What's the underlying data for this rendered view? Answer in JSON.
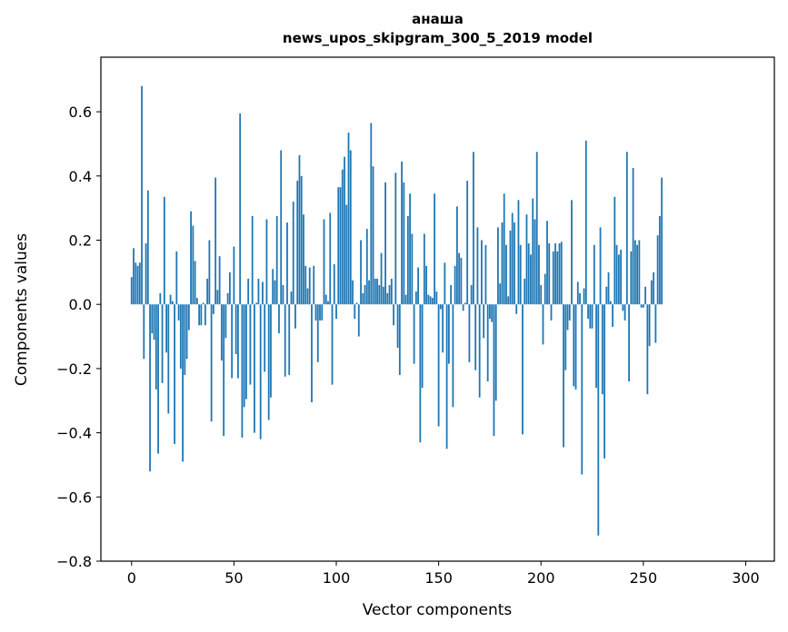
{
  "chart_data": {
    "type": "bar",
    "title_line1": "анаша",
    "title_line2": "news_upos_skipgram_300_5_2019 model",
    "xlabel": "Vector components",
    "ylabel": "Components values",
    "xlim": [
      -15,
      314
    ],
    "ylim": [
      -0.8,
      0.77
    ],
    "x_ticks": [
      0,
      50,
      100,
      150,
      200,
      250,
      300
    ],
    "x_tick_labels": [
      "0",
      "50",
      "100",
      "150",
      "200",
      "250",
      "300"
    ],
    "y_ticks": [
      -0.8,
      -0.6,
      -0.4,
      -0.2,
      0.0,
      0.2,
      0.4,
      0.6
    ],
    "y_tick_labels": [
      "−0.8",
      "−0.6",
      "−0.4",
      "−0.2",
      "0.0",
      "0.2",
      "0.4",
      "0.6"
    ],
    "bar_color": "#1f77b4",
    "grid": false,
    "values": [
      0.085,
      0.175,
      0.13,
      0.12,
      0.13,
      0.68,
      -0.17,
      0.19,
      0.355,
      -0.52,
      -0.09,
      -0.11,
      -0.265,
      -0.465,
      0.035,
      -0.245,
      0.335,
      -0.15,
      -0.34,
      0.03,
      0.01,
      -0.435,
      0.165,
      -0.05,
      -0.2,
      -0.49,
      -0.22,
      -0.17,
      -0.08,
      0.29,
      0.245,
      0.135,
      0.02,
      -0.065,
      -0.065,
      0.005,
      -0.065,
      0.08,
      0.2,
      -0.365,
      -0.03,
      0.395,
      0.045,
      0.15,
      -0.175,
      -0.41,
      -0.105,
      0.035,
      0.1,
      -0.23,
      0.18,
      -0.155,
      -0.23,
      0.595,
      -0.415,
      -0.32,
      -0.295,
      0.08,
      -0.25,
      0.275,
      -0.4,
      0.005,
      0.08,
      -0.42,
      0.07,
      -0.21,
      0.265,
      -0.36,
      -0.29,
      0.11,
      0.075,
      0.275,
      -0.09,
      0.48,
      0.06,
      -0.225,
      0.255,
      -0.22,
      0.04,
      0.32,
      -0.075,
      0.385,
      0.465,
      0.4,
      0.28,
      0.12,
      0.05,
      0.115,
      -0.305,
      0.12,
      -0.05,
      -0.18,
      -0.05,
      -0.05,
      0.265,
      0.03,
      0.01,
      0.285,
      -0.25,
      0.125,
      -0.045,
      0.365,
      0.365,
      0.42,
      0.46,
      0.31,
      0.535,
      0.48,
      0.075,
      -0.045,
      0.005,
      -0.1,
      0.2,
      0.035,
      0.06,
      0.235,
      0.075,
      0.565,
      0.43,
      0.08,
      0.08,
      0.06,
      0.16,
      0.055,
      0.38,
      0.035,
      0.06,
      0.08,
      -0.065,
      0.41,
      -0.135,
      -0.22,
      0.445,
      0.38,
      0.03,
      0.275,
      0.345,
      0.22,
      -0.185,
      0.04,
      0.115,
      -0.43,
      -0.26,
      0.22,
      0.12,
      0.03,
      0.025,
      0.02,
      0.345,
      0.04,
      -0.38,
      -0.015,
      -0.15,
      0.13,
      -0.45,
      -0.185,
      0.06,
      -0.32,
      0.12,
      0.305,
      0.16,
      0.145,
      -0.02,
      0.005,
      0.385,
      -0.18,
      0.06,
      0.475,
      -0.205,
      0.24,
      -0.29,
      0.2,
      -0.105,
      0.185,
      -0.24,
      -0.045,
      -0.055,
      -0.41,
      -0.3,
      0.24,
      0.065,
      0.255,
      0.345,
      0.185,
      0.025,
      0.23,
      0.285,
      0.255,
      -0.03,
      0.325,
      0.185,
      -0.405,
      0.08,
      0.28,
      0.19,
      0.155,
      0.33,
      0.265,
      0.475,
      0.185,
      0.06,
      -0.125,
      0.095,
      0.26,
      0.19,
      -0.05,
      0.165,
      0.19,
      0.165,
      0.19,
      0.195,
      -0.445,
      -0.205,
      -0.08,
      -0.05,
      0.325,
      -0.255,
      -0.265,
      0.07,
      0.035,
      -0.53,
      0.05,
      0.51,
      -0.045,
      -0.075,
      -0.075,
      0.185,
      -0.26,
      -0.72,
      0.24,
      -0.28,
      -0.48,
      0.055,
      0.1,
      0.01,
      -0.07,
      0.335,
      0.185,
      0.155,
      0.17,
      -0.02,
      -0.05,
      0.475,
      -0.24,
      0.165,
      0.425,
      0.2,
      0.185,
      0.2,
      -0.01,
      -0.01,
      0.055,
      -0.28,
      -0.13,
      0.075,
      0.1,
      -0.12,
      0.215,
      0.275,
      0.395
    ]
  }
}
